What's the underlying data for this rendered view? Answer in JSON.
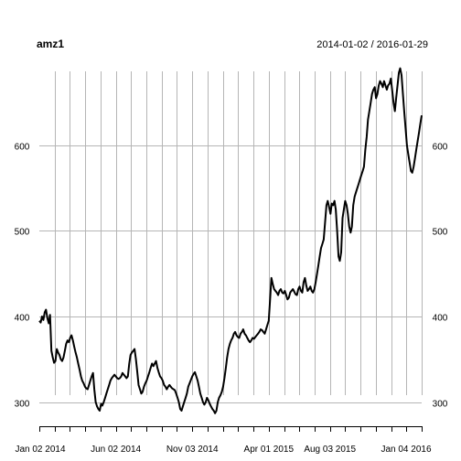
{
  "chart_data": {
    "type": "line",
    "title": "amz1",
    "date_range": "2014-01-02 / 2016-01-29",
    "x_tick_labels": [
      "Jan 02 2014",
      "Jun 02 2014",
      "Nov 03 2014",
      "Apr 01 2015",
      "Aug 03 2015",
      "Jan 04 2016"
    ],
    "y_ticks": [
      300,
      400,
      500,
      600
    ],
    "ylim": [
      275,
      695
    ],
    "grid": true,
    "series": [
      {
        "values": [
          395,
          393,
          400,
          396,
          405,
          408,
          398,
          392,
          402,
          360,
          352,
          346,
          348,
          362,
          358,
          355,
          350,
          348,
          352,
          360,
          368,
          372,
          370,
          375,
          378,
          372,
          365,
          358,
          352,
          345,
          338,
          330,
          325,
          322,
          318,
          316,
          315,
          320,
          325,
          330,
          334,
          315,
          300,
          295,
          292,
          290,
          298,
          296,
          300,
          305,
          310,
          315,
          320,
          325,
          328,
          330,
          332,
          330,
          328,
          327,
          328,
          330,
          334,
          332,
          330,
          328,
          330,
          345,
          355,
          358,
          360,
          362,
          350,
          335,
          320,
          315,
          310,
          312,
          318,
          322,
          325,
          330,
          335,
          340,
          345,
          342,
          345,
          348,
          340,
          335,
          330,
          328,
          325,
          320,
          318,
          315,
          318,
          320,
          318,
          316,
          315,
          314,
          310,
          305,
          300,
          292,
          290,
          295,
          300,
          305,
          310,
          318,
          322,
          326,
          330,
          333,
          335,
          330,
          325,
          318,
          310,
          305,
          300,
          297,
          300,
          305,
          302,
          298,
          295,
          292,
          290,
          287,
          290,
          300,
          305,
          308,
          312,
          318,
          328,
          340,
          352,
          362,
          368,
          372,
          375,
          380,
          382,
          378,
          376,
          375,
          380,
          382,
          385,
          380,
          378,
          375,
          372,
          370,
          372,
          375,
          374,
          376,
          378,
          380,
          382,
          385,
          384,
          382,
          380,
          385,
          390,
          395,
          420,
          445,
          438,
          432,
          430,
          428,
          425,
          430,
          432,
          428,
          427,
          430,
          425,
          420,
          422,
          428,
          430,
          432,
          429,
          426,
          425,
          432,
          435,
          430,
          428,
          440,
          445,
          436,
          430,
          432,
          435,
          430,
          428,
          432,
          440,
          450,
          460,
          470,
          480,
          485,
          490,
          510,
          530,
          535,
          528,
          520,
          532,
          530,
          535,
          525,
          500,
          470,
          465,
          475,
          515,
          525,
          535,
          530,
          520,
          505,
          498,
          505,
          530,
          540,
          545,
          550,
          555,
          560,
          565,
          570,
          575,
          595,
          610,
          630,
          640,
          650,
          660,
          665,
          668,
          655,
          660,
          670,
          675,
          672,
          668,
          675,
          670,
          665,
          670,
          672,
          678,
          665,
          650,
          640,
          655,
          670,
          685,
          690,
          682,
          660,
          640,
          620,
          600,
          590,
          580,
          570,
          568,
          575,
          585,
          595,
          605,
          615,
          625,
          635
        ]
      }
    ]
  }
}
